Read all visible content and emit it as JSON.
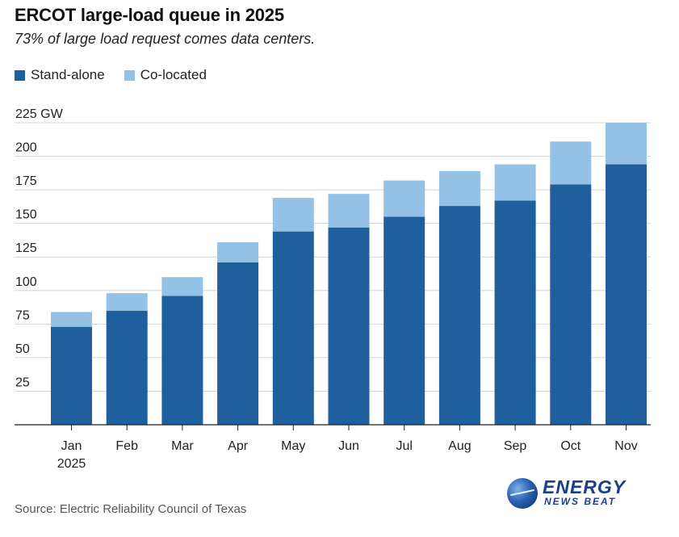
{
  "title": "ERCOT large-load queue in 2025",
  "subtitle": "73% of large load request comes data centers.",
  "legend": {
    "stand_alone": "Stand-alone",
    "co_located": "Co-located"
  },
  "colors": {
    "stand_alone": "#1f5f9e",
    "co_located": "#93c2e6",
    "grid": "#d4d4d4",
    "axis": "#222222"
  },
  "source": "Source: Electric Reliability Council of Texas",
  "logo": {
    "line1": "ENERGY",
    "line2": "NEWS BEAT",
    "icon": "globe-icon"
  },
  "chart_data": {
    "type": "bar",
    "stacked": true,
    "categories": [
      "Jan",
      "Feb",
      "Mar",
      "Apr",
      "May",
      "Jun",
      "Jul",
      "Aug",
      "Sep",
      "Oct",
      "Nov"
    ],
    "category_sublabels": [
      "2025",
      "",
      "",
      "",
      "",
      "",
      "",
      "",
      "",
      "",
      ""
    ],
    "series": [
      {
        "name": "Stand-alone",
        "values": [
          73,
          85,
          96,
          121,
          144,
          147,
          155,
          163,
          167,
          179,
          194
        ]
      },
      {
        "name": "Co-located",
        "values": [
          11,
          13,
          14,
          15,
          25,
          25,
          27,
          26,
          27,
          32,
          31
        ]
      }
    ],
    "yticks": [
      25,
      50,
      75,
      100,
      125,
      150,
      175,
      200,
      225
    ],
    "ytick_labels": [
      "25",
      "50",
      "75",
      "100",
      "125",
      "150",
      "175",
      "200",
      "225 GW"
    ],
    "ylim": [
      0,
      225
    ],
    "grid": true,
    "legend_position": "top-left"
  }
}
